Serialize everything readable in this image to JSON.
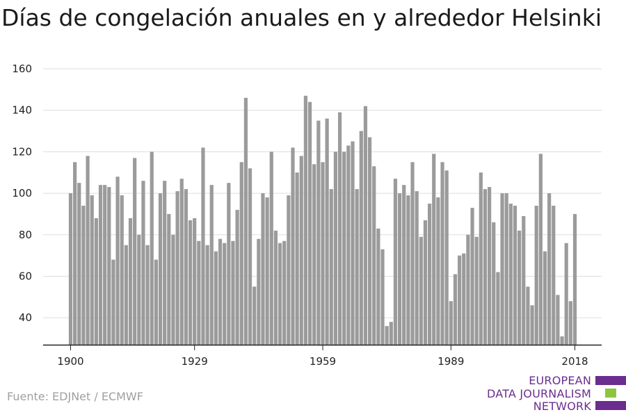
{
  "title": "Días de congelación anuales en y alrededor Helsinki",
  "source": "Fuente: EDJNet / ECMWF",
  "logo": {
    "line1": "EUROPEAN",
    "line2": "DATA JOURNALISM",
    "line3": "NETWORK",
    "colors": [
      "#6b2d8f",
      "#8cc63f",
      "#6b2d8f"
    ]
  },
  "colors": {
    "bar": "#9b9b9b",
    "grid": "#dddddd",
    "axis": "#222222"
  },
  "chart_data": {
    "type": "bar",
    "x_start": 1900,
    "x_end": 2018,
    "x_ticks": [
      1900,
      1929,
      1959,
      1989,
      2018
    ],
    "y_ticks": [
      40,
      60,
      80,
      100,
      120,
      140,
      160
    ],
    "ylim": [
      27,
      163
    ],
    "xlabel": "",
    "ylabel": "",
    "grid": true,
    "values": [
      100,
      115,
      105,
      94,
      118,
      99,
      88,
      104,
      104,
      103,
      68,
      108,
      99,
      75,
      88,
      117,
      80,
      106,
      75,
      120,
      68,
      100,
      106,
      90,
      80,
      101,
      107,
      102,
      87,
      88,
      77,
      122,
      75,
      104,
      72,
      78,
      76,
      105,
      77,
      92,
      115,
      146,
      112,
      55,
      78,
      100,
      98,
      120,
      82,
      76,
      77,
      99,
      122,
      110,
      118,
      147,
      144,
      114,
      135,
      115,
      136,
      102,
      120,
      139,
      120,
      123,
      125,
      102,
      130,
      142,
      127,
      113,
      83,
      73,
      36,
      38,
      107,
      100,
      104,
      99,
      115,
      101,
      79,
      87,
      95,
      119,
      98,
      115,
      111,
      48,
      61,
      70,
      71,
      80,
      93,
      79,
      110,
      102,
      103,
      86,
      62,
      100,
      100,
      95,
      94,
      82,
      89,
      55,
      46,
      94,
      119,
      72,
      100,
      94,
      51,
      31,
      76,
      48,
      90
    ]
  }
}
